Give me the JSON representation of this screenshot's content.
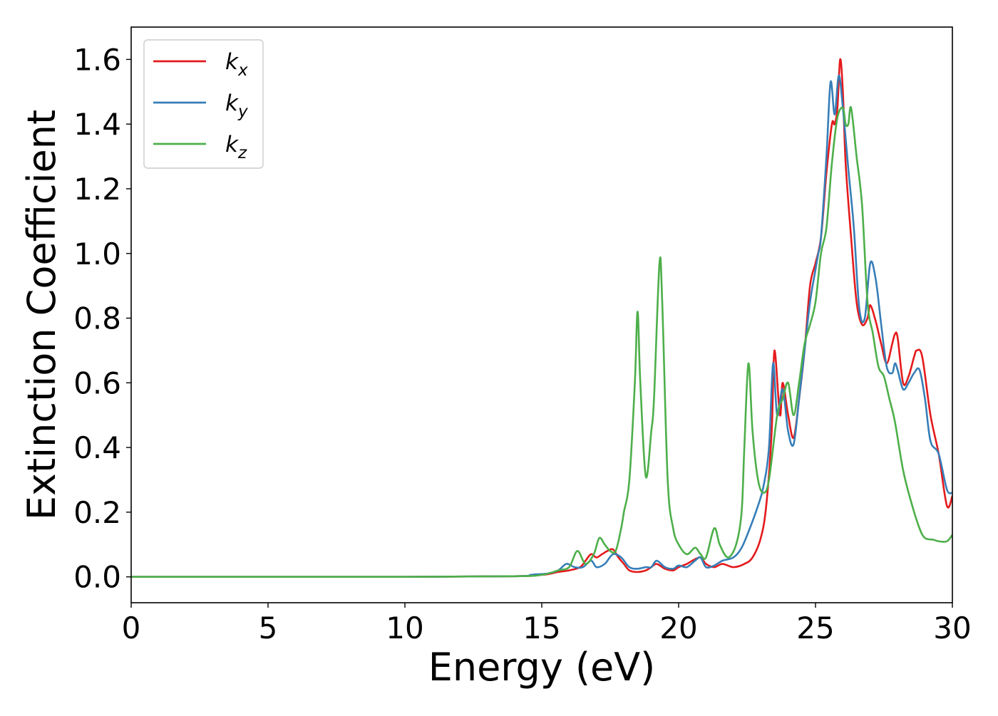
{
  "chart_data": {
    "type": "line",
    "title": "",
    "xlabel": "Energy (eV)",
    "ylabel": "Extinction Coefficient",
    "xlim": [
      0,
      30
    ],
    "ylim": [
      -0.08,
      1.7
    ],
    "xticks": [
      0,
      5,
      10,
      15,
      20,
      25,
      30
    ],
    "xtick_labels": [
      "0",
      "5",
      "10",
      "15",
      "20",
      "25",
      "30"
    ],
    "yticks": [
      0.0,
      0.2,
      0.4,
      0.6,
      0.8,
      1.0,
      1.2,
      1.4,
      1.6
    ],
    "ytick_labels": [
      "0.0",
      "0.2",
      "0.4",
      "0.6",
      "0.8",
      "1.0",
      "1.2",
      "1.4",
      "1.6"
    ],
    "grid": false,
    "legend_position": "top-left",
    "series": [
      {
        "name": "k",
        "subscript": "x",
        "color": "#e41a1c",
        "x": [
          0,
          5,
          10,
          14,
          14.8,
          15.2,
          15.6,
          16.0,
          16.4,
          16.6,
          16.8,
          17.0,
          17.2,
          17.4,
          17.6,
          17.8,
          18.0,
          18.2,
          18.5,
          18.8,
          19.0,
          19.2,
          19.5,
          19.8,
          20.0,
          20.3,
          20.5,
          20.8,
          21.0,
          21.3,
          21.6,
          22.0,
          22.4,
          22.7,
          23.0,
          23.2,
          23.4,
          23.5,
          23.7,
          23.8,
          24.0,
          24.2,
          24.4,
          24.6,
          24.8,
          25.0,
          25.2,
          25.4,
          25.6,
          25.7,
          25.8,
          25.9,
          26.0,
          26.1,
          26.3,
          26.5,
          26.7,
          26.9,
          27.0,
          27.2,
          27.4,
          27.6,
          27.8,
          27.9,
          28.0,
          28.2,
          28.4,
          28.6,
          28.7,
          28.9,
          29.2,
          29.5,
          29.8,
          30.0
        ],
        "y": [
          0.0,
          0.0,
          0.0,
          0.002,
          0.005,
          0.008,
          0.015,
          0.02,
          0.03,
          0.05,
          0.07,
          0.06,
          0.07,
          0.08,
          0.085,
          0.06,
          0.04,
          0.02,
          0.015,
          0.02,
          0.03,
          0.04,
          0.025,
          0.02,
          0.03,
          0.04,
          0.05,
          0.06,
          0.04,
          0.03,
          0.04,
          0.03,
          0.04,
          0.06,
          0.12,
          0.22,
          0.45,
          0.7,
          0.5,
          0.6,
          0.5,
          0.43,
          0.55,
          0.7,
          0.9,
          0.97,
          1.05,
          1.25,
          1.4,
          1.4,
          1.45,
          1.6,
          1.5,
          1.28,
          1.05,
          0.85,
          0.78,
          0.8,
          0.84,
          0.79,
          0.72,
          0.66,
          0.72,
          0.75,
          0.74,
          0.6,
          0.62,
          0.68,
          0.7,
          0.68,
          0.5,
          0.38,
          0.22,
          0.25
        ]
      },
      {
        "name": "k",
        "subscript": "y",
        "color": "#377eb8",
        "x": [
          0,
          5,
          10,
          14,
          14.6,
          14.8,
          15.2,
          15.6,
          15.9,
          16.2,
          16.5,
          16.8,
          17.0,
          17.3,
          17.6,
          17.9,
          18.2,
          18.5,
          18.8,
          19.0,
          19.2,
          19.5,
          19.8,
          20.0,
          20.3,
          20.6,
          20.8,
          21.0,
          21.3,
          21.6,
          22.0,
          22.3,
          22.6,
          22.9,
          23.1,
          23.3,
          23.45,
          23.6,
          23.8,
          24.0,
          24.2,
          24.4,
          24.6,
          24.8,
          25.0,
          25.1,
          25.2,
          25.4,
          25.55,
          25.7,
          25.85,
          26.0,
          26.2,
          26.4,
          26.6,
          26.8,
          27.0,
          27.2,
          27.4,
          27.6,
          27.8,
          27.9,
          28.0,
          28.2,
          28.4,
          28.6,
          28.8,
          29.0,
          29.2,
          29.5,
          29.8,
          30.0
        ],
        "y": [
          0.0,
          0.0,
          0.0,
          0.002,
          0.006,
          0.008,
          0.01,
          0.02,
          0.04,
          0.03,
          0.03,
          0.05,
          0.03,
          0.04,
          0.07,
          0.06,
          0.03,
          0.025,
          0.03,
          0.03,
          0.05,
          0.03,
          0.025,
          0.035,
          0.03,
          0.05,
          0.06,
          0.03,
          0.035,
          0.05,
          0.06,
          0.09,
          0.15,
          0.22,
          0.28,
          0.4,
          0.66,
          0.5,
          0.58,
          0.45,
          0.41,
          0.55,
          0.7,
          0.85,
          0.95,
          1.0,
          1.05,
          1.3,
          1.53,
          1.43,
          1.55,
          1.45,
          1.26,
          1.08,
          0.83,
          0.8,
          0.97,
          0.92,
          0.78,
          0.65,
          0.63,
          0.66,
          0.64,
          0.58,
          0.6,
          0.63,
          0.64,
          0.55,
          0.42,
          0.38,
          0.27,
          0.26
        ]
      },
      {
        "name": "k",
        "subscript": "z",
        "color": "#4daf4a",
        "x": [
          0,
          5,
          10,
          14,
          15.0,
          15.6,
          16.0,
          16.3,
          16.6,
          16.9,
          17.1,
          17.3,
          17.5,
          17.7,
          17.9,
          18.0,
          18.2,
          18.4,
          18.5,
          18.6,
          18.8,
          19.0,
          19.1,
          19.3,
          19.4,
          19.6,
          19.8,
          20.0,
          20.3,
          20.6,
          20.8,
          21.0,
          21.3,
          21.5,
          21.8,
          22.1,
          22.3,
          22.4,
          22.55,
          22.7,
          22.9,
          23.1,
          23.3,
          23.6,
          23.8,
          24.0,
          24.2,
          24.4,
          24.6,
          24.8,
          25.0,
          25.2,
          25.4,
          25.6,
          25.8,
          26.0,
          26.1,
          26.2,
          26.3,
          26.5,
          26.7,
          26.9,
          27.1,
          27.3,
          27.5,
          27.7,
          27.9,
          28.2,
          28.5,
          28.8,
          29.0,
          29.3,
          29.5,
          29.8,
          30.0
        ],
        "y": [
          0.0,
          0.0,
          0.0,
          0.002,
          0.006,
          0.02,
          0.03,
          0.08,
          0.04,
          0.07,
          0.12,
          0.1,
          0.08,
          0.08,
          0.15,
          0.2,
          0.3,
          0.6,
          0.82,
          0.6,
          0.31,
          0.45,
          0.55,
          0.97,
          0.85,
          0.3,
          0.15,
          0.1,
          0.07,
          0.09,
          0.07,
          0.06,
          0.15,
          0.1,
          0.06,
          0.1,
          0.2,
          0.4,
          0.66,
          0.45,
          0.3,
          0.26,
          0.3,
          0.5,
          0.55,
          0.6,
          0.5,
          0.6,
          0.72,
          0.78,
          0.85,
          1.0,
          1.08,
          1.28,
          1.42,
          1.45,
          1.4,
          1.4,
          1.45,
          1.3,
          1.15,
          0.85,
          0.75,
          0.65,
          0.62,
          0.55,
          0.48,
          0.33,
          0.23,
          0.15,
          0.12,
          0.115,
          0.11,
          0.11,
          0.13
        ]
      }
    ]
  }
}
